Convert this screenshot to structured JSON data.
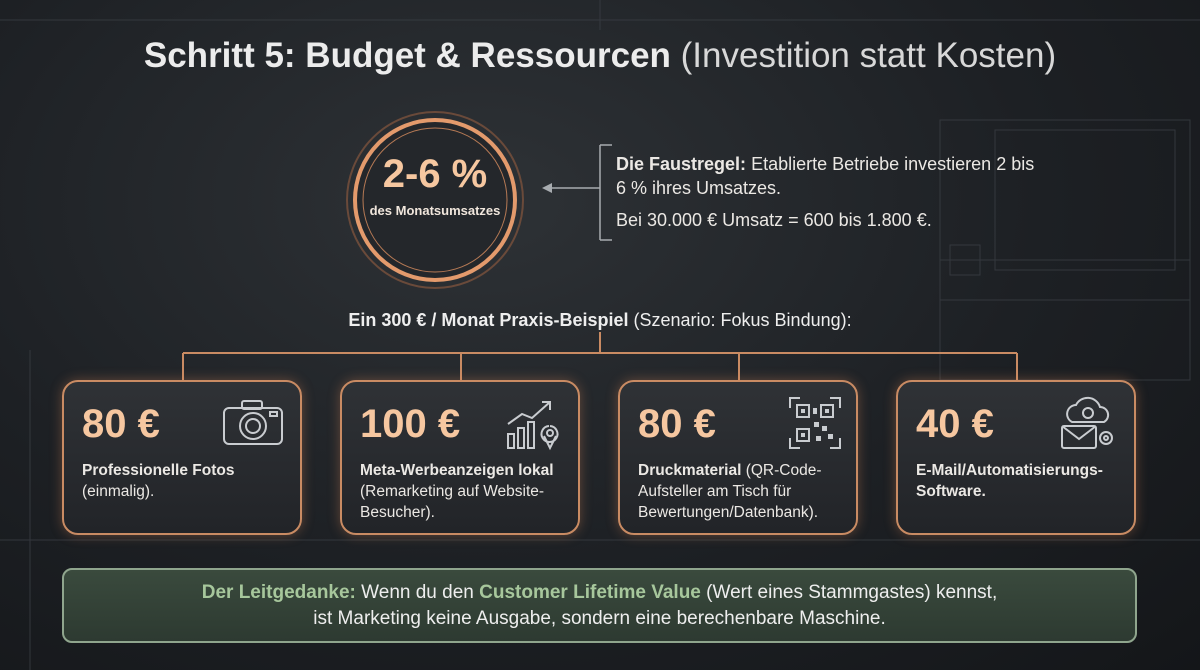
{
  "title": {
    "bold": "Schritt 5: Budget & Ressourcen",
    "light": "(Investition statt Kosten)"
  },
  "circle": {
    "value": "2-6 %",
    "caption": "des Monatsumsatzes"
  },
  "rule": {
    "label": "Die Faustregel:",
    "text": "Etablierte Betriebe investieren 2 bis 6 % ihres Umsatzes.",
    "example": "Bei 30.000 € Umsatz = 600 bis 1.800 €."
  },
  "example_heading": {
    "bold": "Ein 300 € / Monat Praxis-Beispiel",
    "normal": "(Szenario: Fokus Bindung):"
  },
  "cards": [
    {
      "amount": "80 €",
      "bold": "Professionelle Fotos",
      "text": "(einmalig)."
    },
    {
      "amount": "100 €",
      "bold": "Meta-Werbeanzeigen lokal",
      "text": "(Remarketing auf Website-Besucher)."
    },
    {
      "amount": "80 €",
      "bold": "Druckmaterial",
      "text": "(QR-Code-Aufsteller am Tisch für Bewertungen/Datenbank)."
    },
    {
      "amount": "40 €",
      "bold": "E-Mail/Automatisierungs-Software."
    }
  ],
  "footer": {
    "label": "Der Leitgedanke:",
    "text1": "Wenn du den",
    "highlight": "Customer Lifetime Value",
    "text2": "(Wert eines Stammgastes) kennst,",
    "line2": "ist Marketing keine Ausgabe, sondern eine berechenbare Maschine."
  }
}
